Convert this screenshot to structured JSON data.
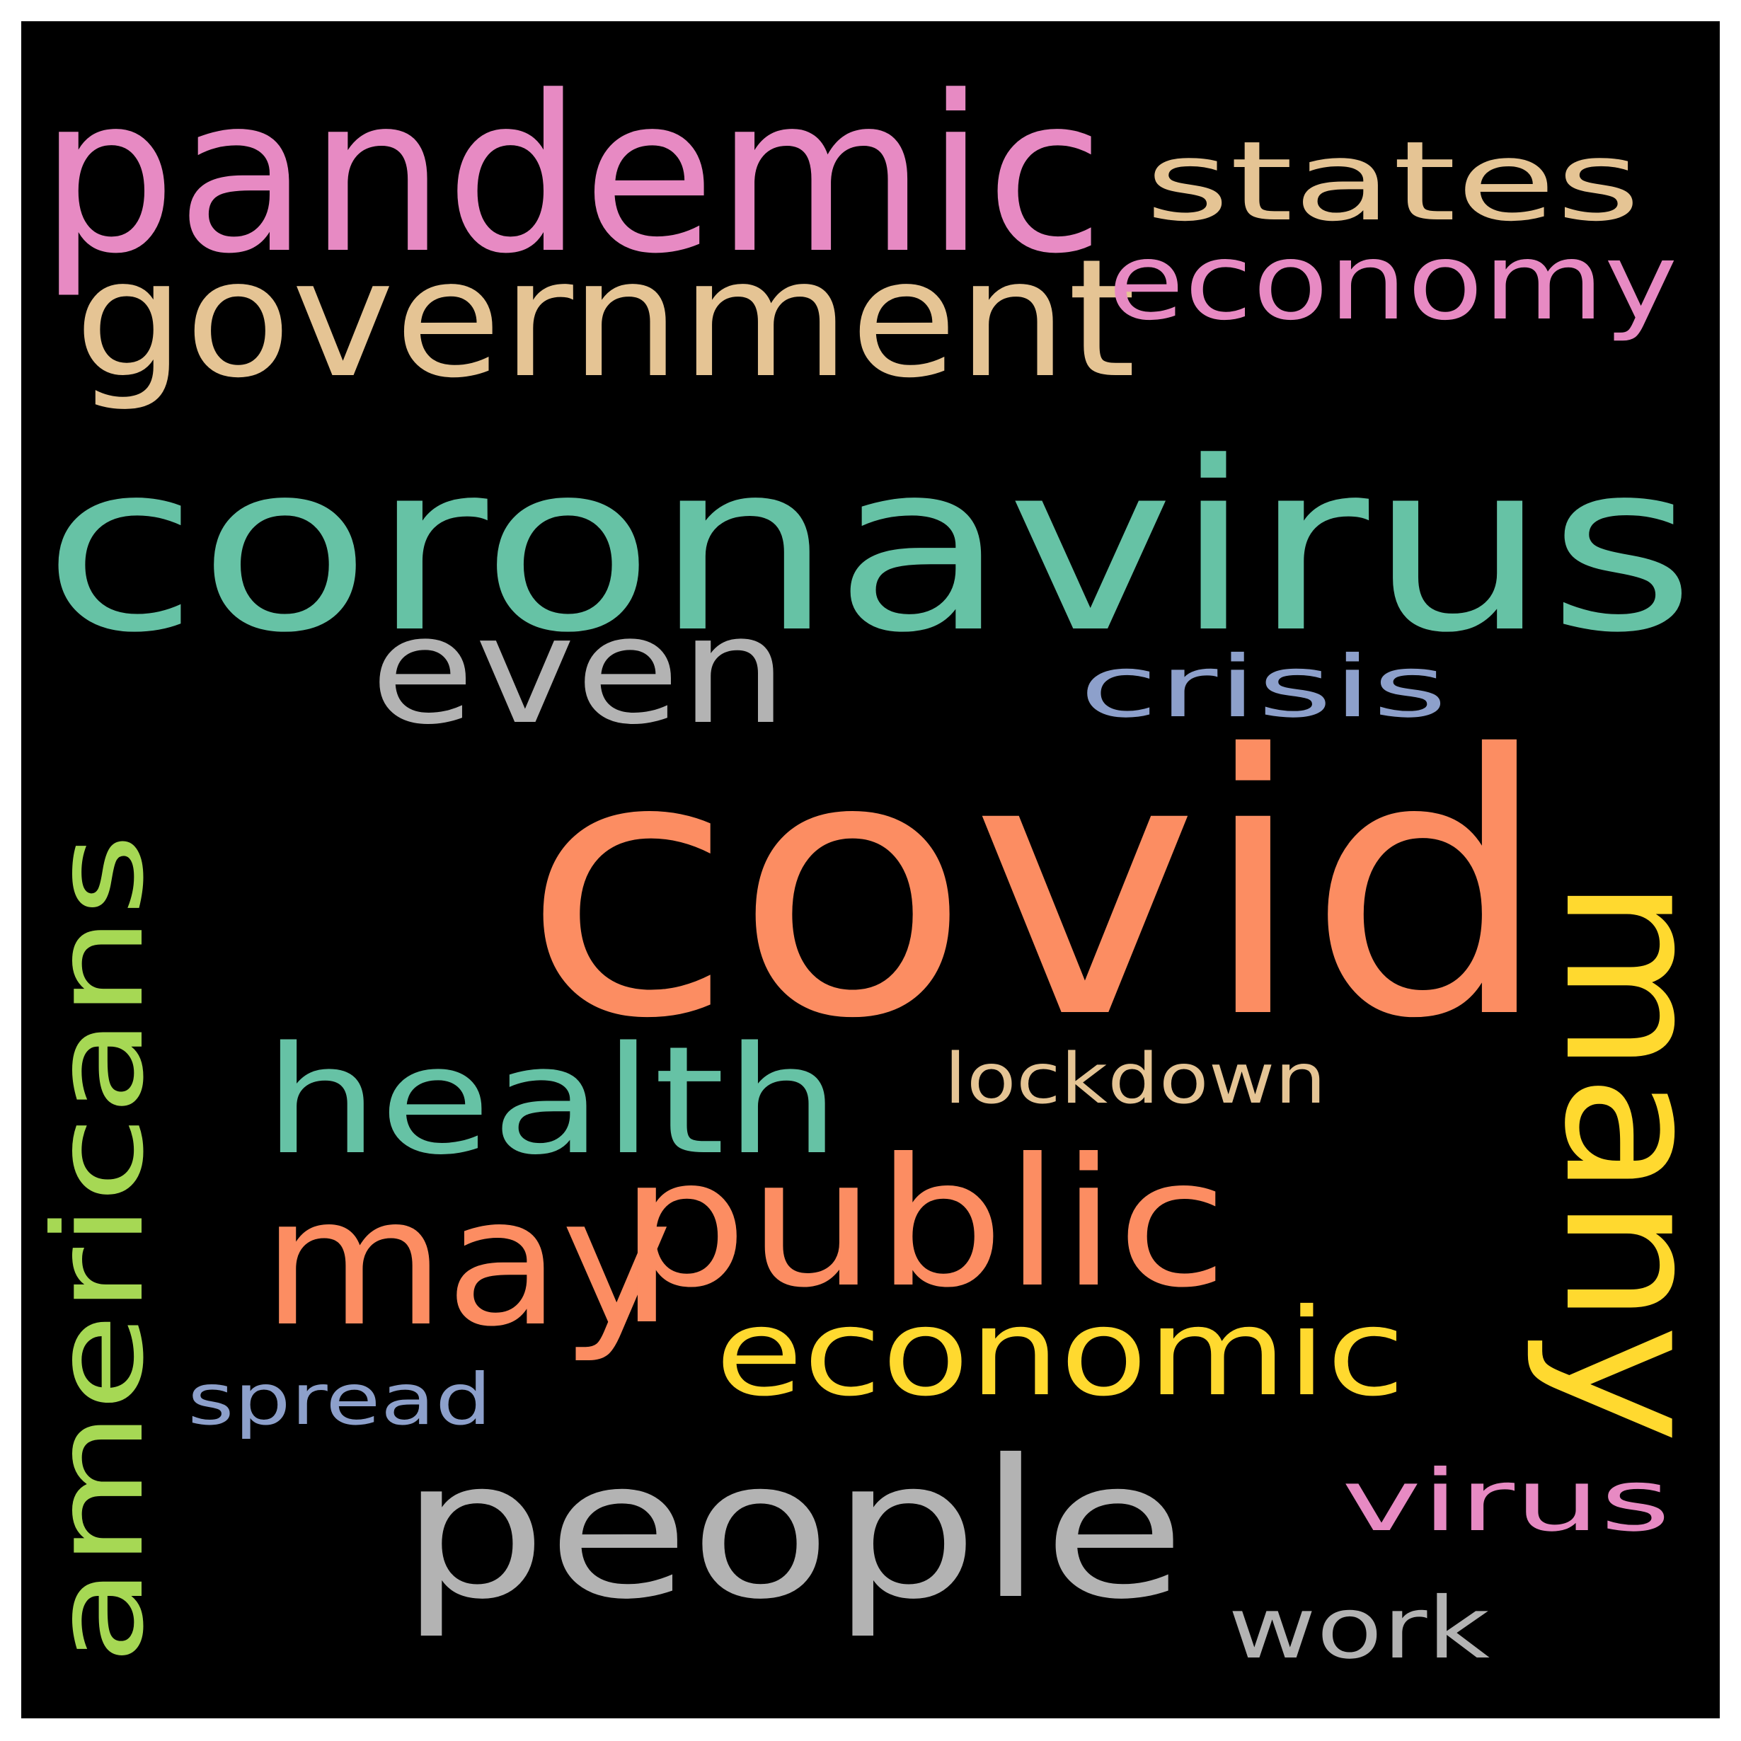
{
  "wordcloud": {
    "background": "#000000",
    "frame": "#ffffff",
    "words": [
      {
        "text": "covid",
        "color": "#fc8d62"
      },
      {
        "text": "coronavirus",
        "color": "#66c2a5"
      },
      {
        "text": "pandemic",
        "color": "#e78ac3"
      },
      {
        "text": "government",
        "color": "#e5c494"
      },
      {
        "text": "many",
        "color": "#ffd92f"
      },
      {
        "text": "people",
        "color": "#b3b3b3"
      },
      {
        "text": "may",
        "color": "#fc8d62"
      },
      {
        "text": "public",
        "color": "#fc8d62"
      },
      {
        "text": "americans",
        "color": "#a6d854"
      },
      {
        "text": "health",
        "color": "#66c2a5"
      },
      {
        "text": "even",
        "color": "#b3b3b3"
      },
      {
        "text": "economic",
        "color": "#ffd92f"
      },
      {
        "text": "states",
        "color": "#e5c494"
      },
      {
        "text": "economy",
        "color": "#e78ac3"
      },
      {
        "text": "crisis",
        "color": "#8da0cb"
      },
      {
        "text": "virus",
        "color": "#e78ac3"
      },
      {
        "text": "work",
        "color": "#b3b3b3"
      },
      {
        "text": "spread",
        "color": "#8da0cb"
      },
      {
        "text": "lockdown",
        "color": "#e5c494"
      }
    ]
  }
}
